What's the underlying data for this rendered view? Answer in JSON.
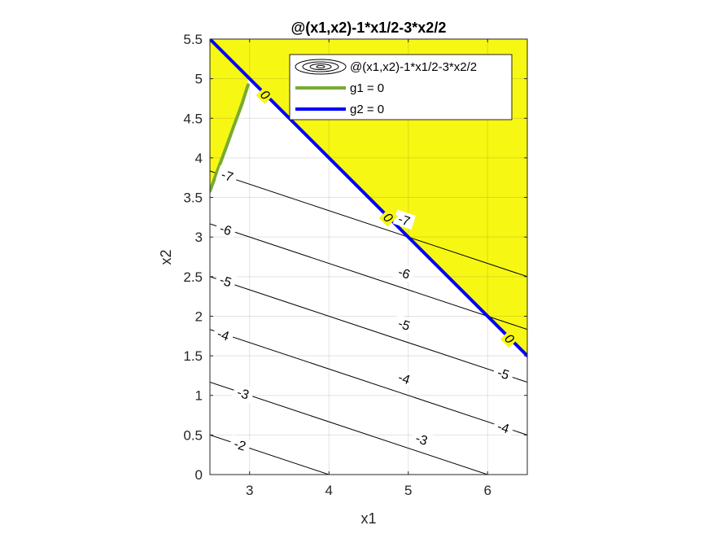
{
  "chart_data": {
    "type": "contour",
    "title": "@(x1,x2)-1*x1/2-3*x2/2",
    "xlabel": "x1",
    "ylabel": "x2",
    "xlim": [
      2.5,
      6.5
    ],
    "ylim": [
      0,
      5.5
    ],
    "x_ticks": [
      3,
      4,
      5,
      6
    ],
    "y_ticks": [
      0,
      0.5,
      1,
      1.5,
      2,
      2.5,
      3,
      3.5,
      4,
      4.5,
      5,
      5.5
    ],
    "grid": true,
    "function": {
      "a": -0.5,
      "b": -1.5
    },
    "contour_levels": [
      -2,
      -3,
      -4,
      -5,
      -6,
      -7
    ],
    "contour_labels": [
      {
        "text": "-2",
        "x": 2.88,
        "y": 0.38
      },
      {
        "text": "-3",
        "x": 2.92,
        "y": 1.03
      },
      {
        "text": "-3",
        "x": 5.17,
        "y": 0.45
      },
      {
        "text": "-4",
        "x": 2.67,
        "y": 1.77
      },
      {
        "text": "-4",
        "x": 4.95,
        "y": 1.22
      },
      {
        "text": "-4",
        "x": 6.2,
        "y": 0.6
      },
      {
        "text": "-5",
        "x": 2.7,
        "y": 2.45
      },
      {
        "text": "-5",
        "x": 4.95,
        "y": 1.9
      },
      {
        "text": "-5",
        "x": 6.2,
        "y": 1.28
      },
      {
        "text": "-6",
        "x": 2.7,
        "y": 3.1
      },
      {
        "text": "-6",
        "x": 4.95,
        "y": 2.55
      },
      {
        "text": "-7",
        "x": 2.72,
        "y": 3.78
      },
      {
        "text": "-7",
        "x": 4.95,
        "y": 3.22
      },
      {
        "text": "0",
        "x": 3.2,
        "y": 4.8
      },
      {
        "text": "0",
        "x": 4.75,
        "y": 3.25
      },
      {
        "text": "0",
        "x": 6.28,
        "y": 1.72
      }
    ],
    "series": [
      {
        "name": "@(x1,x2)-1*x1/2-3*x2/2",
        "kind": "contour"
      },
      {
        "name": "g1 = 0",
        "kind": "line",
        "color": "#77ac30",
        "x": [
          2.5,
          2.6,
          2.7,
          2.8,
          2.9,
          2.98
        ],
        "y": [
          3.58,
          3.85,
          4.12,
          4.4,
          4.67,
          4.92
        ]
      },
      {
        "name": "g2 = 0",
        "kind": "line",
        "color": "#0000ff",
        "x": [
          2.5,
          6.5
        ],
        "y": [
          5.5,
          1.5
        ]
      }
    ],
    "infeasible_fill_color": "#f7f714",
    "legend_position": "top-right"
  }
}
